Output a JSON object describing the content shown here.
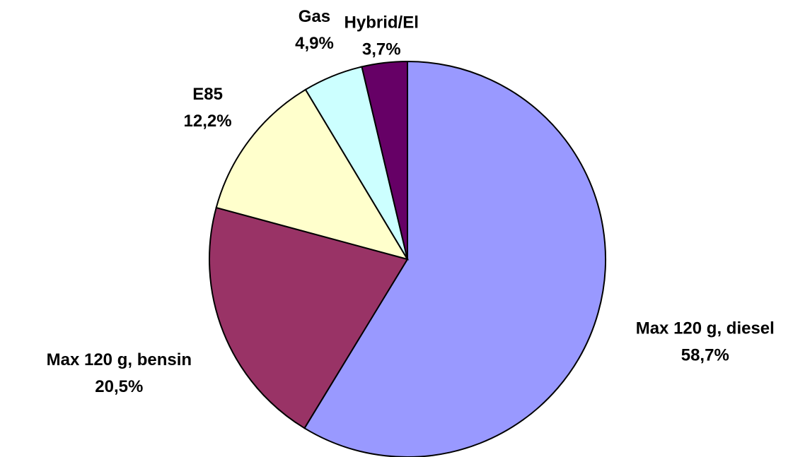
{
  "chart_data": {
    "type": "pie",
    "categories": [
      "Max 120 g, diesel",
      "Max 120 g, bensin",
      "E85",
      "Gas",
      "Hybrid/El"
    ],
    "values": [
      58.7,
      20.5,
      12.2,
      4.9,
      3.7
    ],
    "value_labels": [
      "58,7%",
      "20,5%",
      "12,2%",
      "4,9%",
      "3,7%"
    ],
    "colors": [
      "#9999ff",
      "#993366",
      "#ffffcc",
      "#ccffff",
      "#660066"
    ]
  }
}
